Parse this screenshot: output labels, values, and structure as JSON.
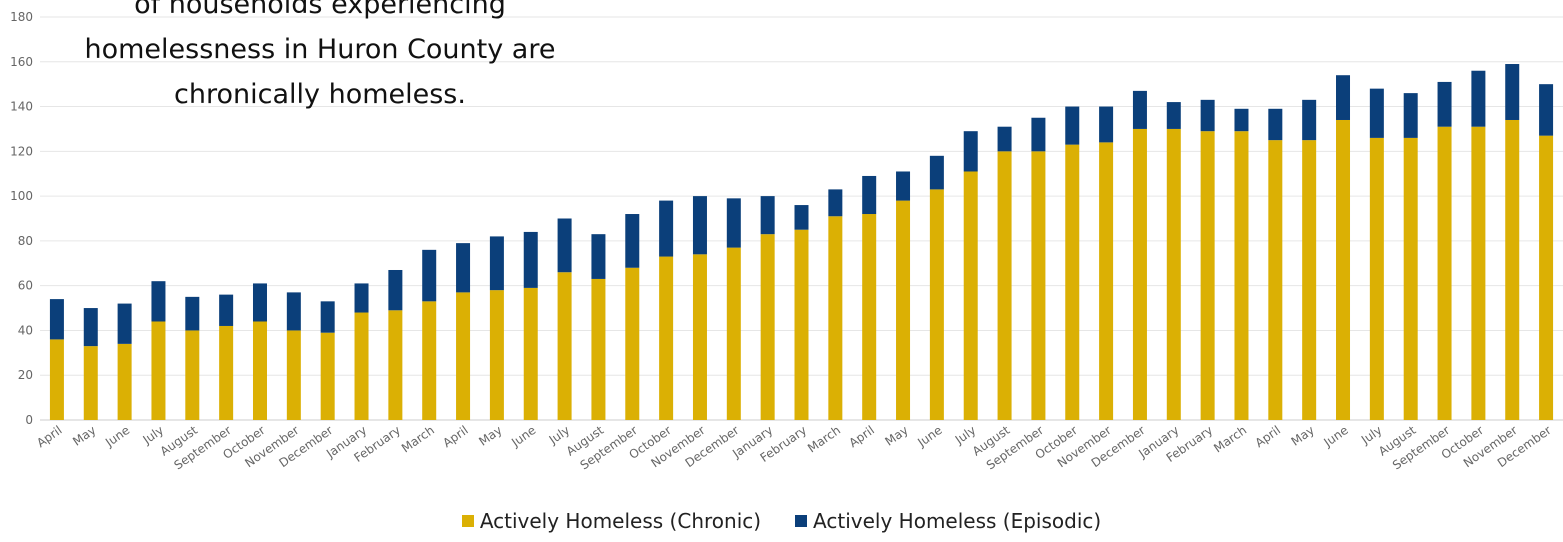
{
  "callout_text": "of households experiencing homelessness in Huron County are chronically homeless.",
  "legend": [
    {
      "label": "Actively Homeless (Chronic)",
      "color": "#dbb004"
    },
    {
      "label": "Actively Homeless (Episodic)",
      "color": "#0b3f7a"
    }
  ],
  "chart_data": {
    "type": "bar",
    "stacked": true,
    "title": "",
    "xlabel": "",
    "ylabel": "",
    "ylim": [
      0,
      180
    ],
    "yticks": [
      0,
      20,
      40,
      60,
      80,
      100,
      120,
      140,
      160,
      180
    ],
    "grid": true,
    "legend_position": "bottom",
    "categories": [
      "April",
      "May",
      "June",
      "July",
      "August",
      "September",
      "October",
      "November",
      "December",
      "January",
      "February",
      "March",
      "April",
      "May",
      "June",
      "July",
      "August",
      "September",
      "October",
      "November",
      "December",
      "January",
      "February",
      "March",
      "April",
      "May",
      "June",
      "July",
      "August",
      "September",
      "October",
      "November",
      "December",
      "January",
      "February",
      "March",
      "April",
      "May",
      "June",
      "July",
      "August",
      "September",
      "October",
      "November",
      "December"
    ],
    "series": [
      {
        "name": "Actively Homeless (Chronic)",
        "color": "#dbb004",
        "values": [
          36,
          33,
          34,
          44,
          40,
          42,
          44,
          40,
          39,
          48,
          49,
          53,
          57,
          58,
          59,
          66,
          63,
          68,
          73,
          74,
          77,
          83,
          85,
          91,
          92,
          98,
          103,
          111,
          120,
          120,
          123,
          124,
          130,
          130,
          129,
          129,
          125,
          125,
          134,
          126,
          126,
          131,
          131,
          134,
          127
        ]
      },
      {
        "name": "Actively Homeless (Episodic)",
        "color": "#0b3f7a",
        "values": [
          18,
          17,
          18,
          18,
          15,
          14,
          17,
          17,
          14,
          13,
          18,
          23,
          22,
          24,
          25,
          24,
          20,
          24,
          25,
          26,
          22,
          17,
          11,
          12,
          17,
          13,
          15,
          18,
          11,
          15,
          17,
          16,
          17,
          12,
          14,
          10,
          14,
          18,
          20,
          22,
          20,
          20,
          25,
          25,
          23
        ]
      }
    ]
  }
}
